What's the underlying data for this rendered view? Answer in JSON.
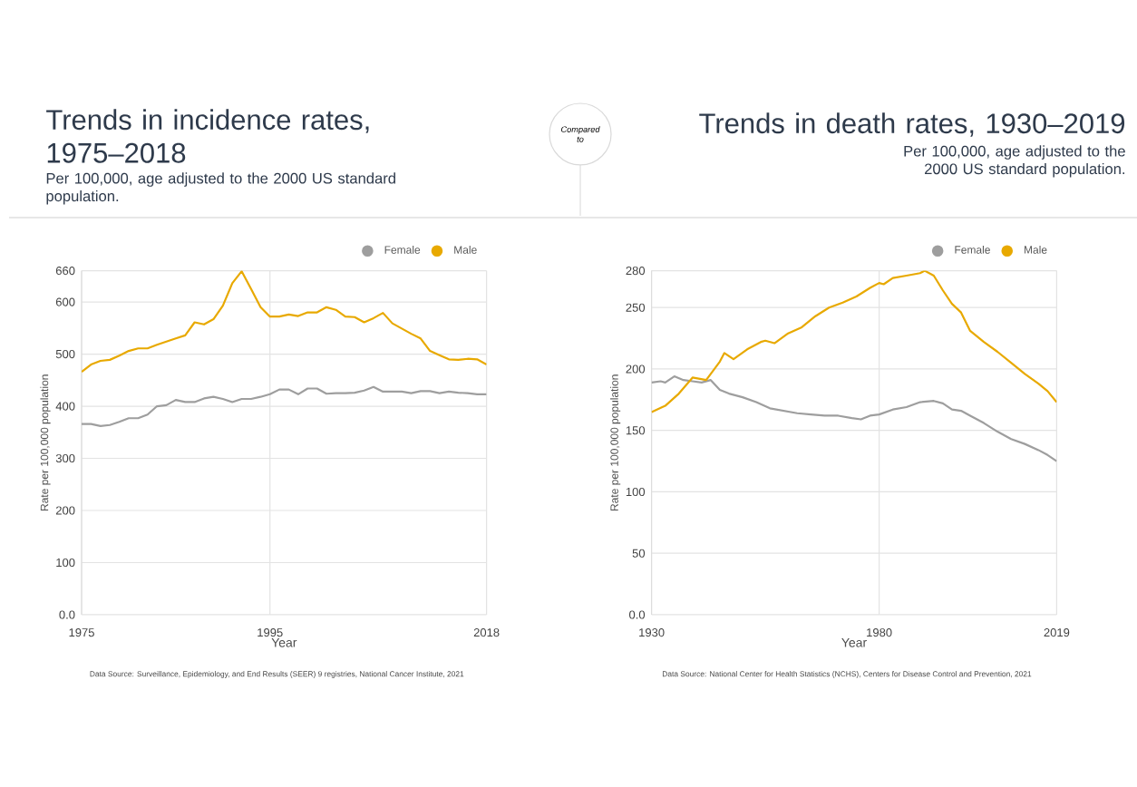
{
  "chart_data": [
    {
      "type": "line",
      "title": "Trends in incidence rates, 1975–2018",
      "subtitle": "Per 100,000, age adjusted to the 2000 US standard population.",
      "xlabel": "Year",
      "ylabel": "Rate per 100,000 population",
      "annotations": [
        "Data Source: Surveillance, Epidemiology, and End Results (SEER) 9 registries, National Cancer Institute, 2021",
        "Compared to"
      ],
      "x": [
        1975,
        1976,
        1977,
        1978,
        1979,
        1980,
        1981,
        1982,
        1983,
        1984,
        1985,
        1986,
        1987,
        1988,
        1989,
        1990,
        1991,
        1992,
        1993,
        1994,
        1995,
        1996,
        1997,
        1998,
        1999,
        2000,
        2001,
        2002,
        2003,
        2004,
        2005,
        2006,
        2007,
        2008,
        2009,
        2010,
        2011,
        2012,
        2013,
        2014,
        2015,
        2016,
        2017,
        2018
      ],
      "series": [
        {
          "name": "Female",
          "color": "#9e9e9e",
          "values": [
            366,
            366,
            362,
            364,
            370,
            377,
            377,
            384,
            400,
            402,
            412,
            408,
            408,
            415,
            418,
            414,
            408,
            414,
            414,
            418,
            423,
            432,
            432,
            423,
            434,
            434,
            424,
            425,
            425,
            426,
            430,
            437,
            428,
            428,
            428,
            425,
            429,
            429,
            425,
            428,
            426,
            425,
            423,
            423
          ]
        },
        {
          "name": "Male",
          "color": "#e8a900",
          "values": [
            466,
            480,
            487,
            489,
            497,
            506,
            511,
            511,
            518,
            524,
            530,
            536,
            561,
            557,
            567,
            593,
            636,
            659,
            625,
            590,
            572,
            572,
            576,
            573,
            580,
            580,
            590,
            585,
            572,
            571,
            561,
            569,
            579,
            559,
            549,
            539,
            530,
            506,
            498,
            490,
            489,
            491,
            490,
            480
          ]
        }
      ],
      "xlim": [
        1975,
        2018
      ],
      "xticks": [
        1975,
        1995,
        2018
      ],
      "ylim": [
        0,
        660
      ],
      "yticks": [
        {
          "value": 0,
          "label": "0.0"
        },
        100,
        200,
        300,
        400,
        500,
        600,
        660
      ],
      "grid": true,
      "legend": "top right"
    },
    {
      "type": "line",
      "title": "Trends in death rates, 1930–2019",
      "subtitle": "Per 100,000, age adjusted to the 2000 US standard population.",
      "xlabel": "Year",
      "ylabel": "Rate per 100,000 population",
      "annotations": [
        "Data Source: National Center for Health Statistics (NCHS), Centers for Disease Control and Prevention, 2021"
      ],
      "series": [
        {
          "name": "Female",
          "color": "#9e9e9e",
          "x": [
            1930,
            1932,
            1933,
            1935,
            1937,
            1939,
            1941,
            1943,
            1945,
            1947,
            1950,
            1953,
            1956,
            1959,
            1962,
            1965,
            1968,
            1971,
            1974,
            1976,
            1978,
            1980,
            1983,
            1986,
            1989,
            1992,
            1994,
            1996,
            1998,
            2000,
            2003,
            2006,
            2009,
            2012,
            2015,
            2017,
            2019
          ],
          "values": [
            189,
            190,
            189,
            194,
            191,
            190,
            189,
            191,
            183,
            180,
            177,
            173,
            168,
            166,
            164,
            163,
            162,
            162,
            160,
            159,
            162,
            163,
            167,
            169,
            173,
            174,
            172,
            167,
            166,
            162,
            156,
            149,
            143,
            139,
            134,
            130,
            125
          ]
        },
        {
          "name": "Male",
          "color": "#e8a900",
          "x": [
            1930,
            1933,
            1936,
            1939,
            1942,
            1945,
            1946,
            1948,
            1951,
            1954,
            1955,
            1957,
            1960,
            1963,
            1966,
            1969,
            1972,
            1975,
            1978,
            1980,
            1981,
            1983,
            1986,
            1989,
            1990,
            1992,
            1994,
            1996,
            1998,
            2000,
            2003,
            2006,
            2009,
            2012,
            2015,
            2017,
            2019
          ],
          "values": [
            165,
            170,
            180,
            193,
            191,
            206,
            213,
            208,
            216,
            222,
            223,
            221,
            229,
            234,
            243,
            250,
            254,
            259,
            266,
            270,
            269,
            274,
            276,
            278,
            280,
            276,
            264,
            253,
            246,
            231,
            222,
            214,
            205,
            196,
            188,
            182,
            173
          ]
        }
      ],
      "xlim": [
        1930,
        2019
      ],
      "xticks": [
        1930,
        1980,
        2019
      ],
      "ylim": [
        0,
        280
      ],
      "yticks": [
        {
          "value": 0,
          "label": "0.0"
        },
        50,
        100,
        150,
        200,
        250,
        280
      ],
      "grid": true,
      "legend": "top right"
    }
  ]
}
